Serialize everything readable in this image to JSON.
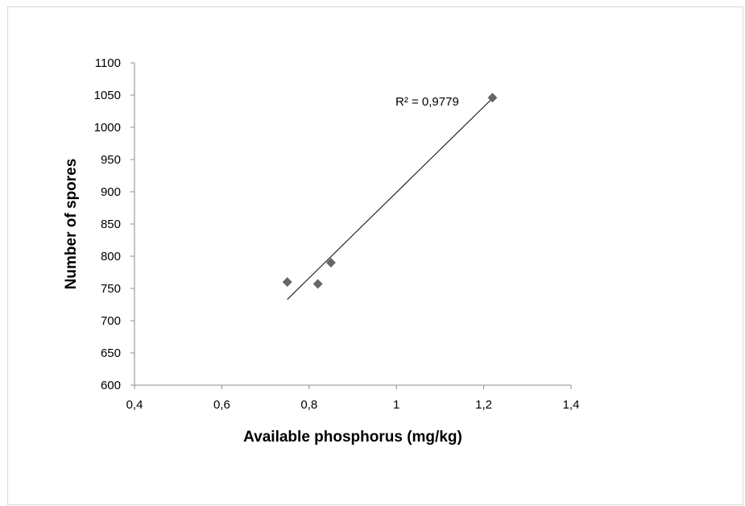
{
  "chart_data": {
    "type": "scatter",
    "title": "",
    "xlabel": "Available phosphorus (mg/kg)",
    "ylabel": "Number of spores",
    "xlim": [
      0.4,
      1.4
    ],
    "ylim": [
      600,
      1100
    ],
    "x_ticks": [
      0.4,
      0.6,
      0.8,
      1.0,
      1.2,
      1.4
    ],
    "x_tick_labels": [
      "0,4",
      "0,6",
      "0,8",
      "1",
      "1,2",
      "1,4"
    ],
    "y_ticks": [
      600,
      650,
      700,
      750,
      800,
      850,
      900,
      950,
      1000,
      1050,
      1100
    ],
    "y_tick_labels": [
      "600",
      "650",
      "700",
      "750",
      "800",
      "850",
      "900",
      "950",
      "1000",
      "1050",
      "1100"
    ],
    "grid": false,
    "legend": "none",
    "marker_color": "#666666",
    "points": [
      {
        "x": 0.75,
        "y": 760
      },
      {
        "x": 0.82,
        "y": 757
      },
      {
        "x": 0.85,
        "y": 790
      },
      {
        "x": 1.22,
        "y": 1046
      }
    ],
    "trendline": {
      "type": "linear",
      "from": {
        "x": 0.75,
        "y": 733
      },
      "to": {
        "x": 1.22,
        "y": 1045
      }
    },
    "annotation": "R² = 0,9779"
  }
}
